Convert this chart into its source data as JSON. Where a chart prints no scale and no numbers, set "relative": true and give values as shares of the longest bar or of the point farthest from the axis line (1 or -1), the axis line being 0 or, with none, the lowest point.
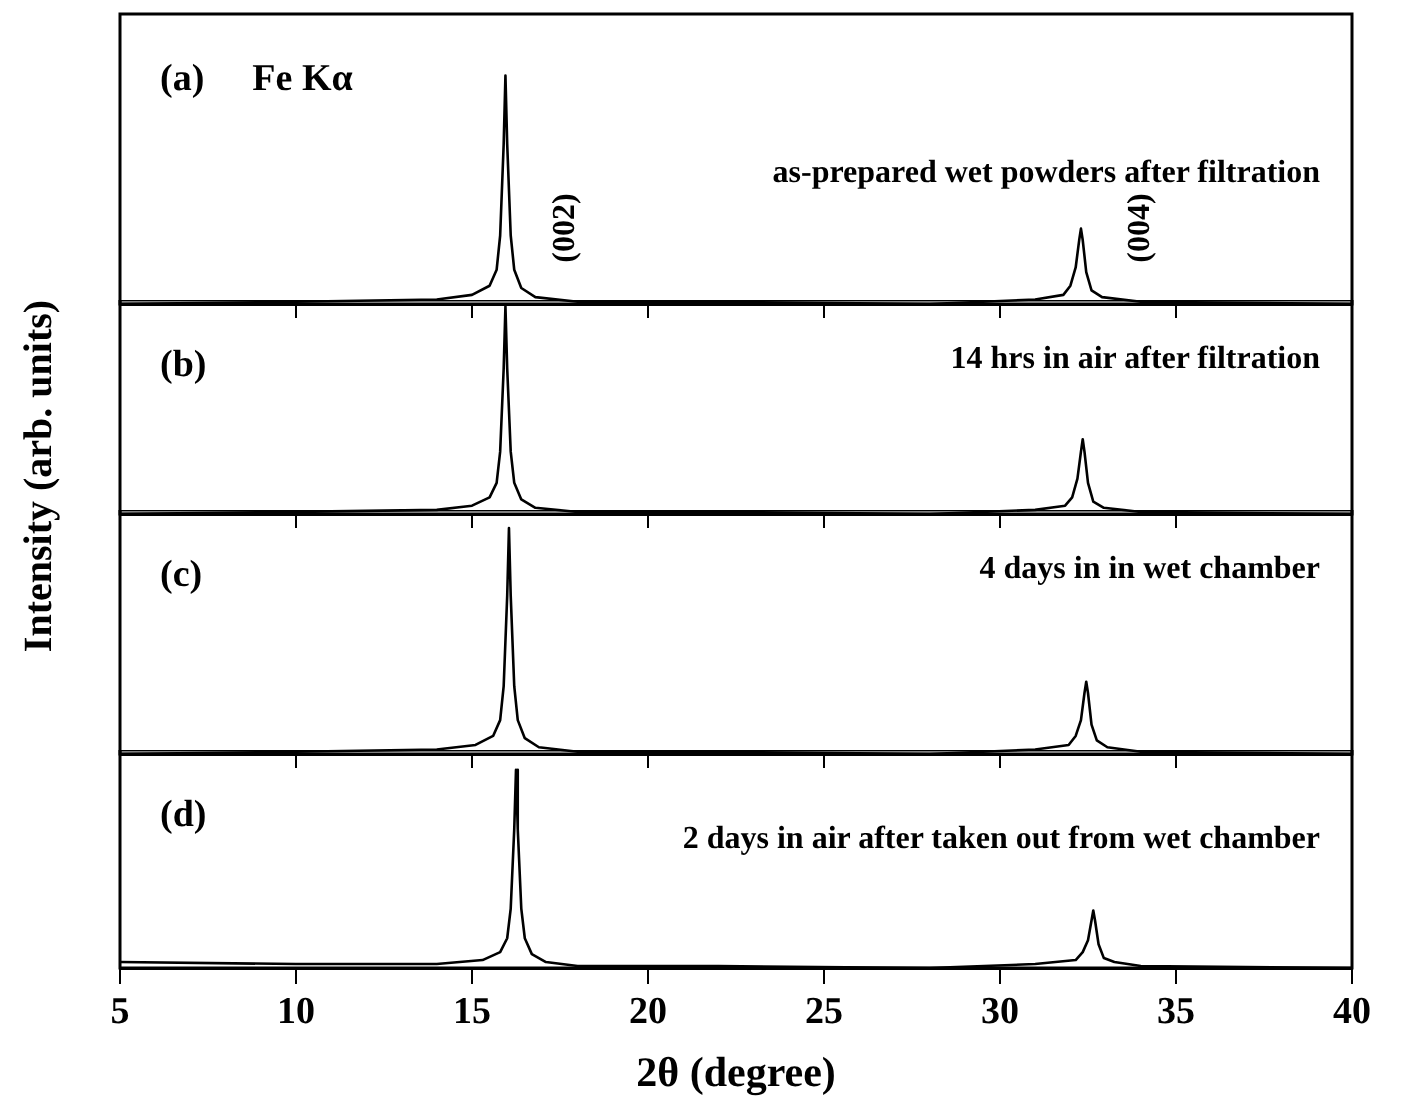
{
  "chart_data": [
    {
      "type": "line",
      "title": "(a)",
      "ylabel": "Intensity (arb. units)",
      "relative": true,
      "tick_labels": false,
      "xlim": [
        5,
        40
      ],
      "xticks": [
        5,
        10,
        15,
        20,
        25,
        30,
        35,
        40
      ],
      "annotations": [
        "Fe Kα",
        "as-prepared wet powders after filtration",
        "(002)",
        "(004)"
      ],
      "series": [
        {
          "color": "#000000",
          "x": [
            5,
            10,
            14,
            15,
            15.5,
            15.7,
            15.8,
            15.9,
            15.95,
            16.0,
            16.1,
            16.2,
            16.4,
            16.8,
            18,
            22,
            28,
            31,
            31.8,
            32.0,
            32.15,
            32.25,
            32.3,
            32.35,
            32.45,
            32.6,
            32.9,
            34,
            40
          ],
          "values": [
            0,
            0.01,
            0.02,
            0.04,
            0.08,
            0.15,
            0.3,
            0.7,
            1,
            0.7,
            0.3,
            0.15,
            0.07,
            0.03,
            0.01,
            0.01,
            0,
            0.02,
            0.04,
            0.08,
            0.16,
            0.28,
            0.33,
            0.28,
            0.14,
            0.06,
            0.03,
            0.01,
            0
          ]
        }
      ]
    },
    {
      "type": "line",
      "title": "(b)",
      "relative": true,
      "tick_labels": false,
      "xlim": [
        5,
        40
      ],
      "xticks": [
        5,
        10,
        15,
        20,
        25,
        30,
        35,
        40
      ],
      "annotations": [
        "14 hrs in air after filtration"
      ],
      "series": [
        {
          "color": "#000000",
          "x": [
            5,
            10,
            14,
            15,
            15.5,
            15.7,
            15.8,
            15.9,
            15.95,
            16.0,
            16.1,
            16.2,
            16.4,
            16.8,
            18,
            22,
            28,
            31,
            31.85,
            32.05,
            32.2,
            32.3,
            32.35,
            32.4,
            32.5,
            32.65,
            32.95,
            34,
            40
          ],
          "values": [
            0,
            0.01,
            0.02,
            0.04,
            0.08,
            0.15,
            0.3,
            0.7,
            1,
            0.7,
            0.3,
            0.15,
            0.07,
            0.03,
            0.01,
            0.01,
            0,
            0.02,
            0.04,
            0.08,
            0.17,
            0.3,
            0.36,
            0.3,
            0.15,
            0.06,
            0.03,
            0.01,
            0
          ]
        }
      ]
    },
    {
      "type": "line",
      "title": "(c)",
      "relative": true,
      "tick_labels": false,
      "xlim": [
        5,
        40
      ],
      "xticks": [
        5,
        10,
        15,
        20,
        25,
        30,
        35,
        40
      ],
      "annotations": [
        "4 days in in wet chamber"
      ],
      "series": [
        {
          "color": "#000000",
          "x": [
            5,
            10,
            14,
            15.1,
            15.6,
            15.8,
            15.9,
            16.0,
            16.05,
            16.1,
            16.2,
            16.3,
            16.5,
            16.9,
            18,
            22,
            28,
            31,
            31.95,
            32.15,
            32.3,
            32.4,
            32.45,
            32.5,
            32.6,
            32.75,
            33.05,
            34,
            40
          ],
          "values": [
            0,
            0.01,
            0.02,
            0.04,
            0.08,
            0.15,
            0.3,
            0.7,
            1,
            0.7,
            0.3,
            0.15,
            0.07,
            0.03,
            0.01,
            0.01,
            0,
            0.02,
            0.04,
            0.08,
            0.15,
            0.27,
            0.32,
            0.27,
            0.13,
            0.06,
            0.03,
            0.01,
            0
          ]
        }
      ]
    },
    {
      "type": "line",
      "title": "(d)",
      "xlabel": "2θ (degree)",
      "relative": true,
      "tick_labels": "x",
      "xlim": [
        5,
        40
      ],
      "xticks": [
        5,
        10,
        15,
        20,
        25,
        30,
        35,
        40
      ],
      "annotations": [
        "2 days in air after taken out from wet chamber"
      ],
      "series": [
        {
          "color": "#000000",
          "x": [
            5,
            10,
            14,
            15.3,
            15.8,
            16.0,
            16.1,
            16.2,
            16.25,
            16.3,
            16.4,
            16.5,
            16.7,
            17.1,
            18,
            22,
            28,
            31,
            32.15,
            32.35,
            32.5,
            32.6,
            32.65,
            32.7,
            32.8,
            32.95,
            33.25,
            34,
            40
          ],
          "values": [
            0.03,
            0.02,
            0.02,
            0.04,
            0.08,
            0.15,
            0.3,
            0.7,
            1,
            0.7,
            0.3,
            0.15,
            0.07,
            0.03,
            0.01,
            0.01,
            0,
            0.02,
            0.04,
            0.08,
            0.14,
            0.24,
            0.29,
            0.24,
            0.12,
            0.05,
            0.03,
            0.01,
            0
          ]
        }
      ]
    }
  ]
}
